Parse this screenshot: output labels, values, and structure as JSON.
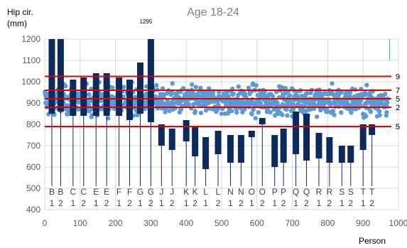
{
  "chart_data": {
    "type": "scatter",
    "title": "Age 18-24",
    "xlabel": "Person",
    "ylabel_lines": [
      "Hip cir.",
      "(mm)"
    ],
    "xlim": [
      0,
      1000
    ],
    "ylim": [
      400,
      1200
    ],
    "xticks": [
      0,
      100,
      200,
      300,
      400,
      500,
      600,
      700,
      800,
      900,
      1000
    ],
    "yticks": [
      400,
      500,
      600,
      700,
      800,
      900,
      1000,
      1100,
      1200
    ],
    "grid": true,
    "colors": {
      "points": "#5b9bd5",
      "bars": "#0d2a5c",
      "lines": "#e00000",
      "grid": "#d9d9d9"
    },
    "scatter_center": 910,
    "scatter_spread": 45,
    "scatter_count": 950,
    "reference_lines": [
      {
        "label": "9",
        "y": 1025
      },
      {
        "label": "7",
        "y": 960
      },
      {
        "label": "5",
        "y": 920
      },
      {
        "label": "2",
        "y": 880
      },
      {
        "label": "5",
        "y": 790
      }
    ],
    "reference_line_xmax": 980,
    "max_annotation": {
      "label": "1295",
      "x": 290
    },
    "right_marker_x": 975,
    "bars": [
      {
        "x": 20,
        "low": 850,
        "high": 1200,
        "label_top": "B",
        "label_bottom": "1"
      },
      {
        "x": 45,
        "low": 860,
        "high": 1200,
        "label_top": "B",
        "label_bottom": "2"
      },
      {
        "x": 80,
        "low": 840,
        "high": 1010,
        "label_top": "C",
        "label_bottom": "1"
      },
      {
        "x": 110,
        "low": 840,
        "high": 1020,
        "label_top": "C",
        "label_bottom": "2"
      },
      {
        "x": 145,
        "low": 840,
        "high": 1040,
        "label_top": "E",
        "label_bottom": "1"
      },
      {
        "x": 175,
        "low": 840,
        "high": 1040,
        "label_top": "E",
        "label_bottom": "2"
      },
      {
        "x": 210,
        "low": 840,
        "high": 1020,
        "label_top": "F",
        "label_bottom": "1"
      },
      {
        "x": 240,
        "low": 820,
        "high": 1010,
        "label_top": "F",
        "label_bottom": "2"
      },
      {
        "x": 270,
        "low": 850,
        "high": 1090,
        "label_top": "G",
        "label_bottom": "1"
      },
      {
        "x": 300,
        "low": 810,
        "high": 1295,
        "label_top": "G",
        "label_bottom": "2"
      },
      {
        "x": 330,
        "low": 700,
        "high": 800,
        "label_top": "J",
        "label_bottom": "1"
      },
      {
        "x": 360,
        "low": 680,
        "high": 780,
        "label_top": "J",
        "label_bottom": "2"
      },
      {
        "x": 400,
        "low": 720,
        "high": 820,
        "label_top": "K",
        "label_bottom": "1"
      },
      {
        "x": 425,
        "low": 650,
        "high": 790,
        "label_top": "K",
        "label_bottom": "2"
      },
      {
        "x": 455,
        "low": 590,
        "high": 740,
        "label_top": "L",
        "label_bottom": "1"
      },
      {
        "x": 490,
        "low": 660,
        "high": 770,
        "label_top": "L",
        "label_bottom": "2"
      },
      {
        "x": 525,
        "low": 620,
        "high": 750,
        "label_top": "N",
        "label_bottom": "1"
      },
      {
        "x": 555,
        "low": 620,
        "high": 750,
        "label_top": "N",
        "label_bottom": "2"
      },
      {
        "x": 585,
        "low": 740,
        "high": 770,
        "label_top": "O",
        "label_bottom": "1"
      },
      {
        "x": 615,
        "low": 800,
        "high": 830,
        "label_top": "O",
        "label_bottom": "2"
      },
      {
        "x": 650,
        "low": 600,
        "high": 750,
        "label_top": "P",
        "label_bottom": "1"
      },
      {
        "x": 675,
        "low": 620,
        "high": 780,
        "label_top": "P",
        "label_bottom": "2"
      },
      {
        "x": 710,
        "low": 660,
        "high": 860,
        "label_top": "Q",
        "label_bottom": "1"
      },
      {
        "x": 740,
        "low": 630,
        "high": 850,
        "label_top": "Q",
        "label_bottom": "2"
      },
      {
        "x": 775,
        "low": 640,
        "high": 760,
        "label_top": "R",
        "label_bottom": "1"
      },
      {
        "x": 805,
        "low": 620,
        "high": 740,
        "label_top": "R",
        "label_bottom": "2"
      },
      {
        "x": 840,
        "low": 620,
        "high": 700,
        "label_top": "S",
        "label_bottom": "1"
      },
      {
        "x": 865,
        "low": 620,
        "high": 700,
        "label_top": "S",
        "label_bottom": "2"
      },
      {
        "x": 900,
        "low": 680,
        "high": 800,
        "label_top": "T",
        "label_bottom": "1"
      },
      {
        "x": 925,
        "low": 750,
        "high": 800,
        "label_top": "T",
        "label_bottom": "2"
      }
    ]
  }
}
